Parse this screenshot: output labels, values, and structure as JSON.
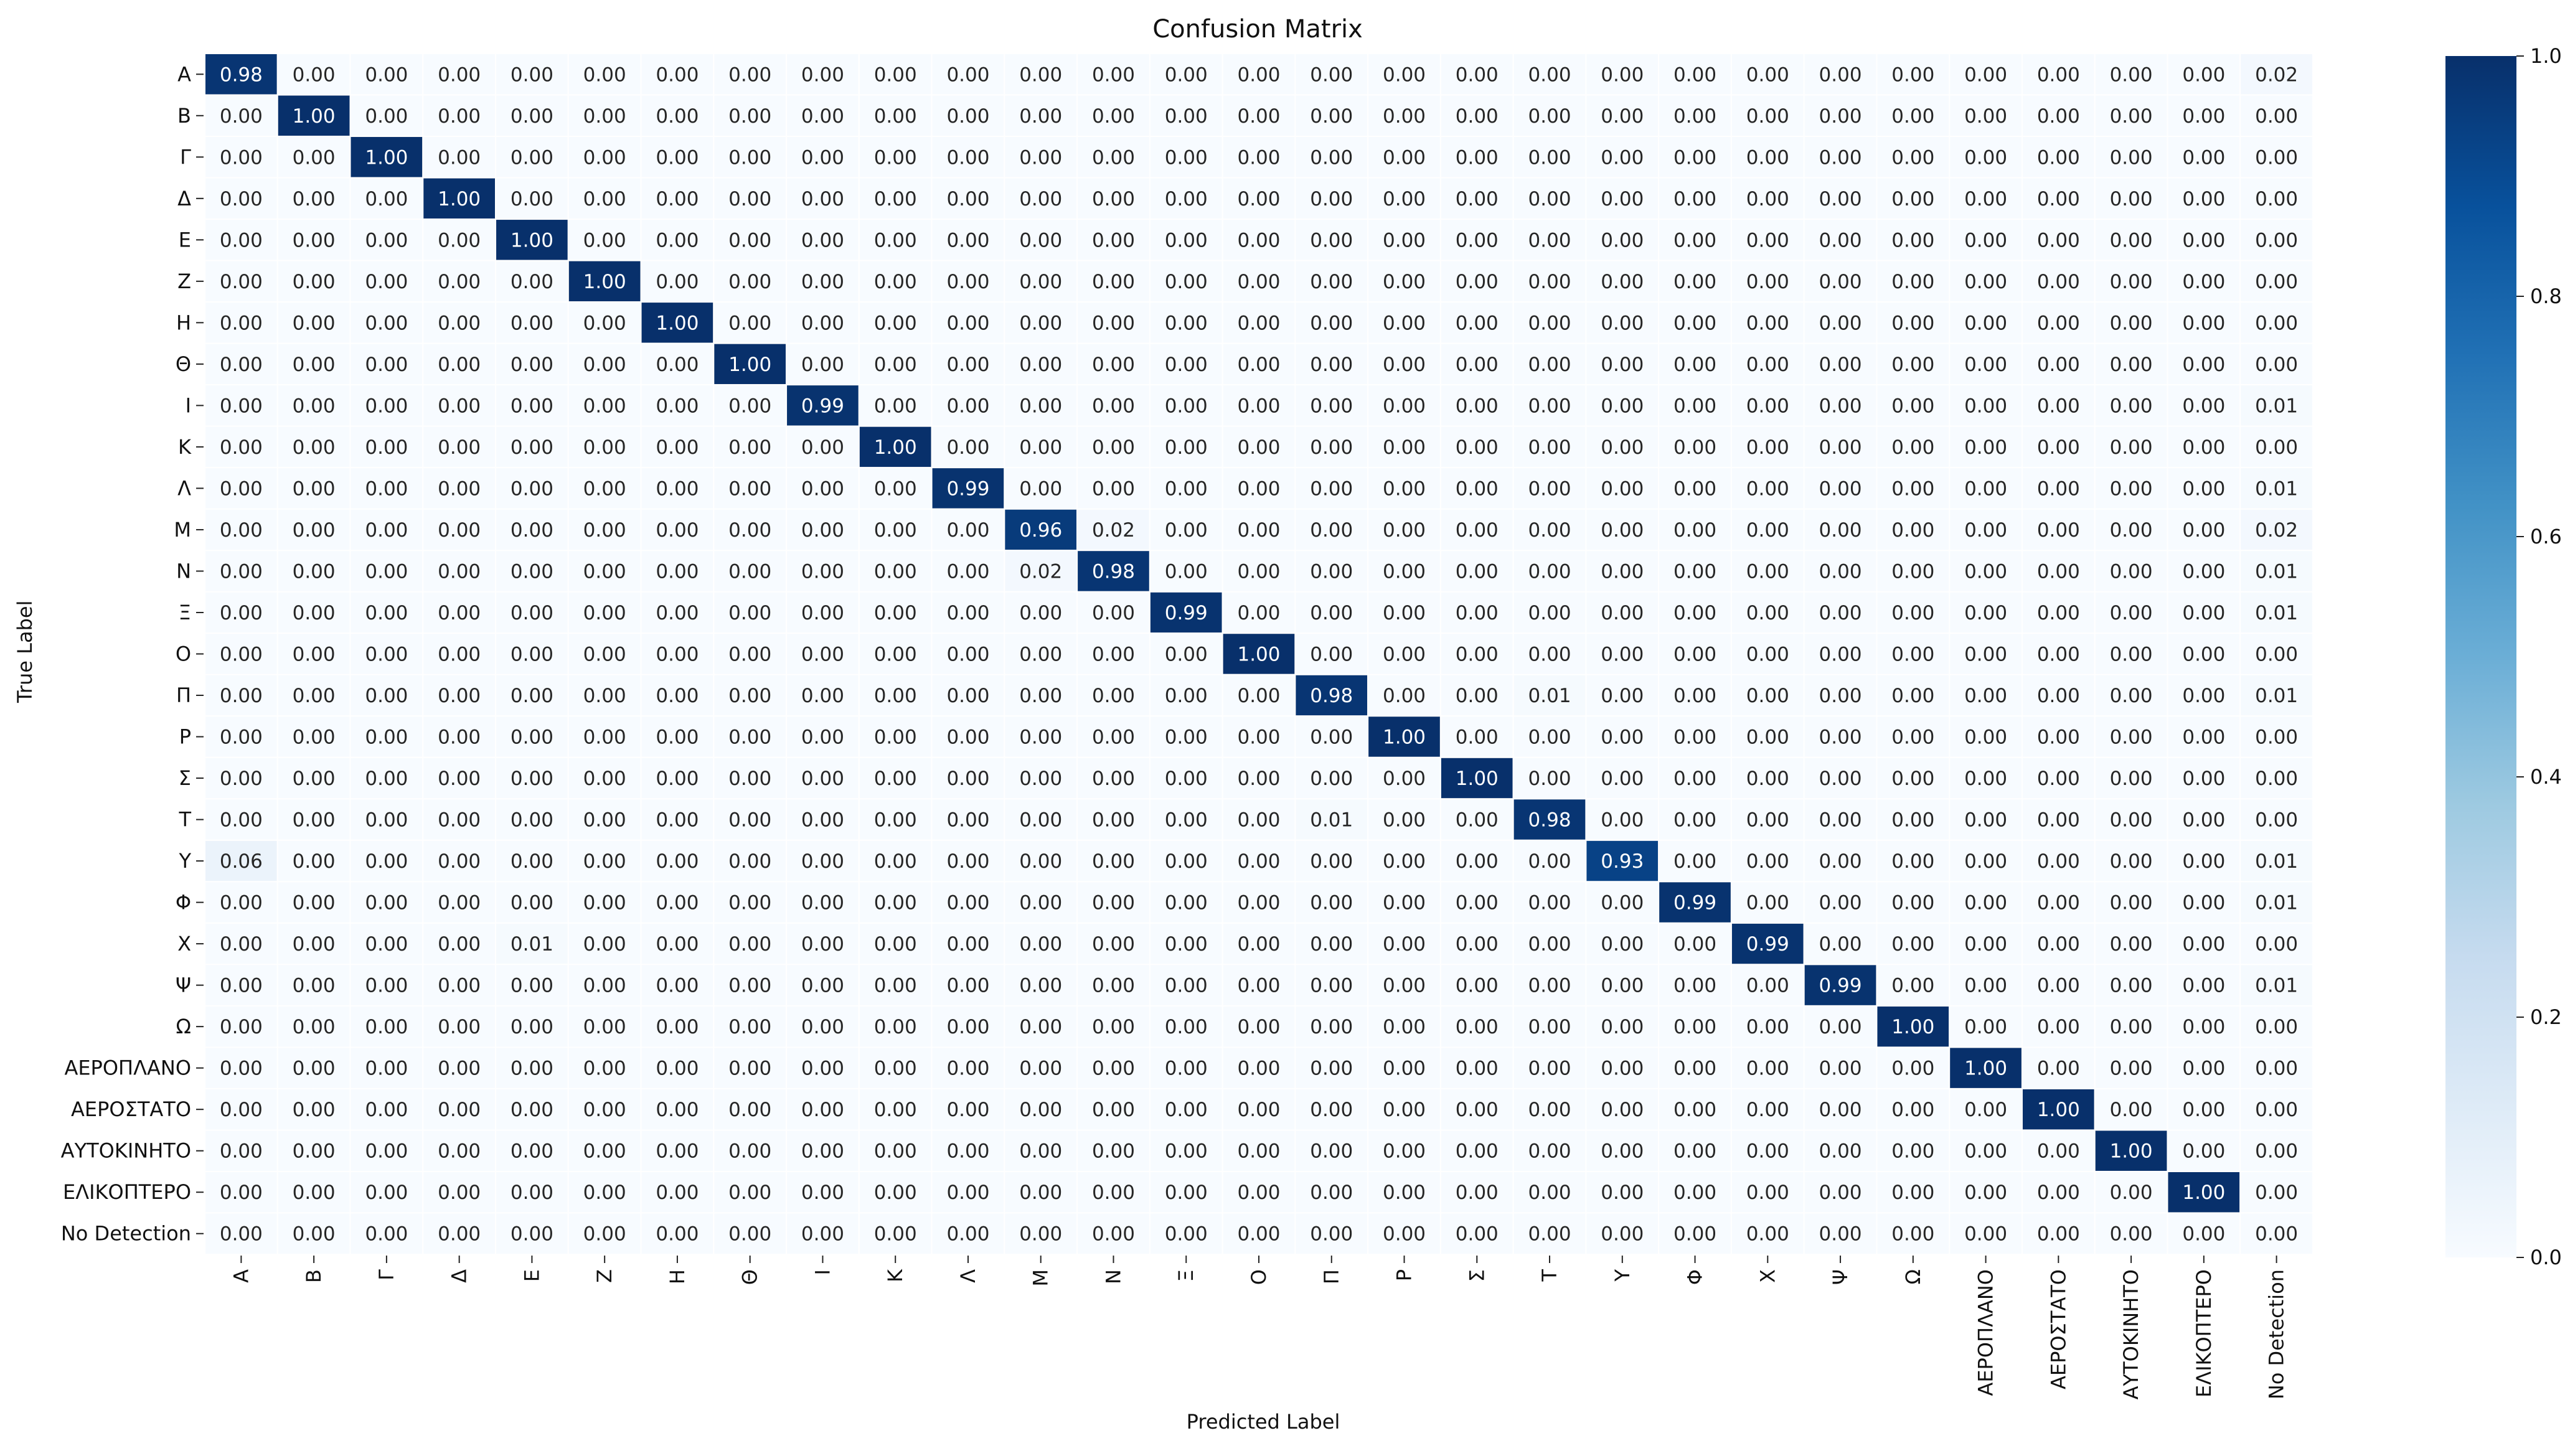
{
  "chart_data": {
    "type": "heatmap",
    "title": "Confusion Matrix",
    "xlabel": "Predicted Label",
    "ylabel": "True Label",
    "colormap": "Blues",
    "colorbar": {
      "range": [
        0.0,
        1.0
      ],
      "ticks": [
        "0.0",
        "0.2",
        "0.4",
        "0.6",
        "0.8",
        "1.0"
      ]
    },
    "labels": [
      "Α",
      "Β",
      "Γ",
      "Δ",
      "Ε",
      "Ζ",
      "Η",
      "Θ",
      "Ι",
      "Κ",
      "Λ",
      "Μ",
      "Ν",
      "Ξ",
      "Ο",
      "Π",
      "Ρ",
      "Σ",
      "Τ",
      "Υ",
      "Φ",
      "Χ",
      "Ψ",
      "Ω",
      "ΑΕΡΟΠΛΑΝΟ",
      "ΑΕΡΟΣΤΑΤΟ",
      "ΑΥΤΟΚΙΝΗΤΟ",
      "ΕΛΙΚΟΠΤΕΡΟ",
      "No Detection"
    ],
    "matrix": [
      [
        0.98,
        0,
        0,
        0,
        0,
        0,
        0,
        0,
        0,
        0,
        0,
        0,
        0,
        0,
        0,
        0,
        0,
        0,
        0,
        0,
        0,
        0,
        0,
        0,
        0,
        0,
        0,
        0,
        0.02
      ],
      [
        0,
        1.0,
        0,
        0,
        0,
        0,
        0,
        0,
        0,
        0,
        0,
        0,
        0,
        0,
        0,
        0,
        0,
        0,
        0,
        0,
        0,
        0,
        0,
        0,
        0,
        0,
        0,
        0,
        0
      ],
      [
        0,
        0,
        1.0,
        0,
        0,
        0,
        0,
        0,
        0,
        0,
        0,
        0,
        0,
        0,
        0,
        0,
        0,
        0,
        0,
        0,
        0,
        0,
        0,
        0,
        0,
        0,
        0,
        0,
        0
      ],
      [
        0,
        0,
        0,
        1.0,
        0,
        0,
        0,
        0,
        0,
        0,
        0,
        0,
        0,
        0,
        0,
        0,
        0,
        0,
        0,
        0,
        0,
        0,
        0,
        0,
        0,
        0,
        0,
        0,
        0
      ],
      [
        0,
        0,
        0,
        0,
        1.0,
        0,
        0,
        0,
        0,
        0,
        0,
        0,
        0,
        0,
        0,
        0,
        0,
        0,
        0,
        0,
        0,
        0,
        0,
        0,
        0,
        0,
        0,
        0,
        0
      ],
      [
        0,
        0,
        0,
        0,
        0,
        1.0,
        0,
        0,
        0,
        0,
        0,
        0,
        0,
        0,
        0,
        0,
        0,
        0,
        0,
        0,
        0,
        0,
        0,
        0,
        0,
        0,
        0,
        0,
        0
      ],
      [
        0,
        0,
        0,
        0,
        0,
        0,
        1.0,
        0,
        0,
        0,
        0,
        0,
        0,
        0,
        0,
        0,
        0,
        0,
        0,
        0,
        0,
        0,
        0,
        0,
        0,
        0,
        0,
        0,
        0
      ],
      [
        0,
        0,
        0,
        0,
        0,
        0,
        0,
        1.0,
        0,
        0,
        0,
        0,
        0,
        0,
        0,
        0,
        0,
        0,
        0,
        0,
        0,
        0,
        0,
        0,
        0,
        0,
        0,
        0,
        0
      ],
      [
        0,
        0,
        0,
        0,
        0,
        0,
        0,
        0,
        0.99,
        0,
        0,
        0,
        0,
        0,
        0,
        0,
        0,
        0,
        0,
        0,
        0,
        0,
        0,
        0,
        0,
        0,
        0,
        0,
        0.01
      ],
      [
        0,
        0,
        0,
        0,
        0,
        0,
        0,
        0,
        0,
        1.0,
        0,
        0,
        0,
        0,
        0,
        0,
        0,
        0,
        0,
        0,
        0,
        0,
        0,
        0,
        0,
        0,
        0,
        0,
        0
      ],
      [
        0,
        0,
        0,
        0,
        0,
        0,
        0,
        0,
        0,
        0,
        0.99,
        0,
        0,
        0,
        0,
        0,
        0,
        0,
        0,
        0,
        0,
        0,
        0,
        0,
        0,
        0,
        0,
        0,
        0.01
      ],
      [
        0,
        0,
        0,
        0,
        0,
        0,
        0,
        0,
        0,
        0,
        0,
        0.96,
        0.02,
        0,
        0,
        0,
        0,
        0,
        0,
        0,
        0,
        0,
        0,
        0,
        0,
        0,
        0,
        0,
        0.02
      ],
      [
        0,
        0,
        0,
        0,
        0,
        0,
        0,
        0,
        0,
        0,
        0,
        0.02,
        0.98,
        0,
        0,
        0,
        0,
        0,
        0,
        0,
        0,
        0,
        0,
        0,
        0,
        0,
        0,
        0,
        0.01
      ],
      [
        0,
        0,
        0,
        0,
        0,
        0,
        0,
        0,
        0,
        0,
        0,
        0,
        0,
        0.99,
        0,
        0,
        0,
        0,
        0,
        0,
        0,
        0,
        0,
        0,
        0,
        0,
        0,
        0,
        0.01
      ],
      [
        0,
        0,
        0,
        0,
        0,
        0,
        0,
        0,
        0,
        0,
        0,
        0,
        0,
        0,
        1.0,
        0,
        0,
        0,
        0,
        0,
        0,
        0,
        0,
        0,
        0,
        0,
        0,
        0,
        0
      ],
      [
        0,
        0,
        0,
        0,
        0,
        0,
        0,
        0,
        0,
        0,
        0,
        0,
        0,
        0,
        0,
        0.98,
        0,
        0,
        0.01,
        0,
        0,
        0,
        0,
        0,
        0,
        0,
        0,
        0,
        0.01
      ],
      [
        0,
        0,
        0,
        0,
        0,
        0,
        0,
        0,
        0,
        0,
        0,
        0,
        0,
        0,
        0,
        0,
        1.0,
        0,
        0,
        0,
        0,
        0,
        0,
        0,
        0,
        0,
        0,
        0,
        0
      ],
      [
        0,
        0,
        0,
        0,
        0,
        0,
        0,
        0,
        0,
        0,
        0,
        0,
        0,
        0,
        0,
        0,
        0,
        1.0,
        0,
        0,
        0,
        0,
        0,
        0,
        0,
        0,
        0,
        0,
        0
      ],
      [
        0,
        0,
        0,
        0,
        0,
        0,
        0,
        0,
        0,
        0,
        0,
        0,
        0,
        0,
        0,
        0.01,
        0,
        0,
        0.98,
        0,
        0,
        0,
        0,
        0,
        0,
        0,
        0,
        0,
        0
      ],
      [
        0.06,
        0,
        0,
        0,
        0,
        0,
        0,
        0,
        0,
        0,
        0,
        0,
        0,
        0,
        0,
        0,
        0,
        0,
        0,
        0.93,
        0,
        0,
        0,
        0,
        0,
        0,
        0,
        0,
        0.01
      ],
      [
        0,
        0,
        0,
        0,
        0,
        0,
        0,
        0,
        0,
        0,
        0,
        0,
        0,
        0,
        0,
        0,
        0,
        0,
        0,
        0,
        0.99,
        0,
        0,
        0,
        0,
        0,
        0,
        0,
        0.01
      ],
      [
        0,
        0,
        0,
        0,
        0.01,
        0,
        0,
        0,
        0,
        0,
        0,
        0,
        0,
        0,
        0,
        0,
        0,
        0,
        0,
        0,
        0,
        0.99,
        0,
        0,
        0,
        0,
        0,
        0,
        0
      ],
      [
        0,
        0,
        0,
        0,
        0,
        0,
        0,
        0,
        0,
        0,
        0,
        0,
        0,
        0,
        0,
        0,
        0,
        0,
        0,
        0,
        0,
        0,
        0.99,
        0,
        0,
        0,
        0,
        0,
        0.01
      ],
      [
        0,
        0,
        0,
        0,
        0,
        0,
        0,
        0,
        0,
        0,
        0,
        0,
        0,
        0,
        0,
        0,
        0,
        0,
        0,
        0,
        0,
        0,
        0,
        1.0,
        0,
        0,
        0,
        0,
        0
      ],
      [
        0,
        0,
        0,
        0,
        0,
        0,
        0,
        0,
        0,
        0,
        0,
        0,
        0,
        0,
        0,
        0,
        0,
        0,
        0,
        0,
        0,
        0,
        0,
        0,
        1.0,
        0,
        0,
        0,
        0
      ],
      [
        0,
        0,
        0,
        0,
        0,
        0,
        0,
        0,
        0,
        0,
        0,
        0,
        0,
        0,
        0,
        0,
        0,
        0,
        0,
        0,
        0,
        0,
        0,
        0,
        0,
        1.0,
        0,
        0,
        0
      ],
      [
        0,
        0,
        0,
        0,
        0,
        0,
        0,
        0,
        0,
        0,
        0,
        0,
        0,
        0,
        0,
        0,
        0,
        0,
        0,
        0,
        0,
        0,
        0,
        0,
        0,
        0,
        1.0,
        0,
        0
      ],
      [
        0,
        0,
        0,
        0,
        0,
        0,
        0,
        0,
        0,
        0,
        0,
        0,
        0,
        0,
        0,
        0,
        0,
        0,
        0,
        0,
        0,
        0,
        0,
        0,
        0,
        0,
        0,
        1.0,
        0
      ],
      [
        0,
        0,
        0,
        0,
        0,
        0,
        0,
        0,
        0,
        0,
        0,
        0,
        0,
        0,
        0,
        0,
        0,
        0,
        0,
        0,
        0,
        0,
        0,
        0,
        0,
        0,
        0,
        0,
        0
      ]
    ]
  }
}
